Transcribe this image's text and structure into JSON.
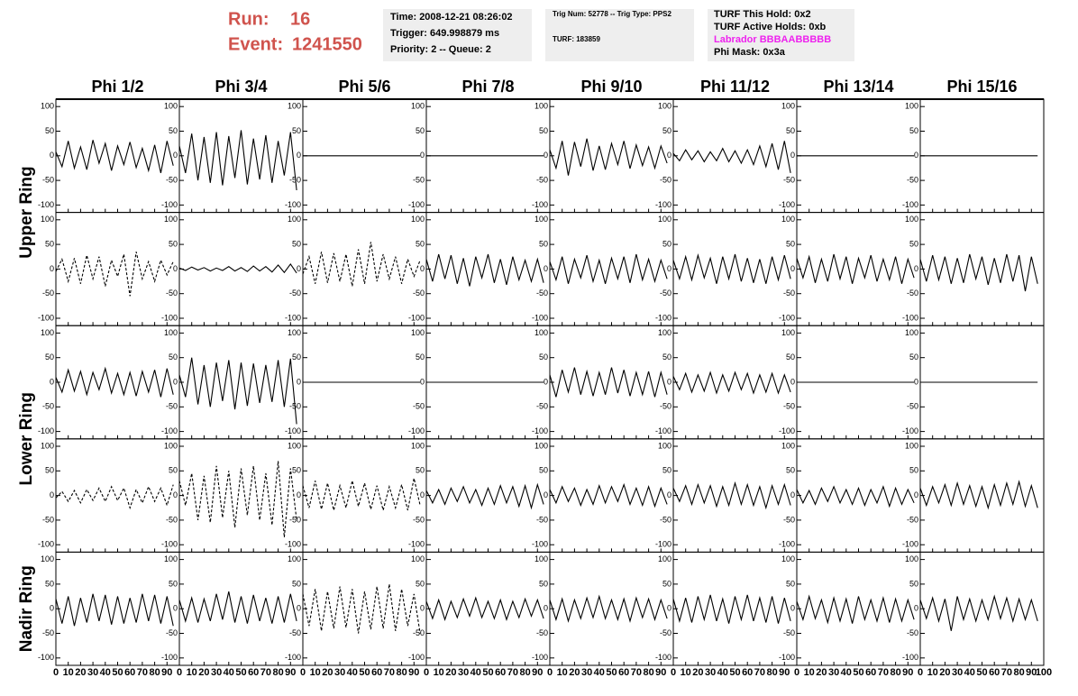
{
  "header": {
    "run": {
      "label": "Run:",
      "value": 16
    },
    "event": {
      "label": "Event:",
      "value": 1241550
    },
    "info_boxes": [
      [
        "Time: 2008-12-21 08:26:02",
        "Trigger: 649.998879 ms",
        "Priority: 2 -- Queue: 2"
      ],
      [
        "Trig Num: 52778 -- Trig Type: PPS2",
        "TURF: 183859"
      ],
      [
        "TURF This Hold: 0x2",
        "TURF Active Holds: 0xb",
        "Labrador BBBAABBBBB",
        "Phi Mask: 0x3a"
      ]
    ]
  },
  "chart_data": {
    "type": "line",
    "columns": [
      "Phi 1/2",
      "Phi 3/4",
      "Phi 5/6",
      "Phi 7/8",
      "Phi 9/10",
      "Phi 11/12",
      "Phi 13/14",
      "Phi 15/16"
    ],
    "ring_labels": [
      "Upper Ring",
      "Lower Ring",
      "Nadir Ring"
    ],
    "x": [
      0,
      5,
      10,
      15,
      20,
      25,
      30,
      35,
      40,
      45,
      50,
      55,
      60,
      65,
      70,
      75,
      80,
      85,
      90,
      95
    ],
    "xlim": [
      0,
      100
    ],
    "xticks": [
      0,
      10,
      20,
      30,
      40,
      50,
      60,
      70,
      80,
      90,
      100
    ],
    "ylim": [
      -115,
      115
    ],
    "yticks": [
      -100,
      -50,
      0,
      50,
      100
    ],
    "color": "#000000",
    "rows": [
      {
        "panels": [
          {
            "dashed": false,
            "values": [
              8,
              -22,
              30,
              -25,
              18,
              -28,
              32,
              -15,
              25,
              -30,
              20,
              -18,
              28,
              -24,
              15,
              -30,
              22,
              -35,
              30,
              -20
            ]
          },
          {
            "dashed": false,
            "values": [
              20,
              -35,
              45,
              -50,
              38,
              -55,
              48,
              -60,
              40,
              -45,
              52,
              -58,
              35,
              -48,
              42,
              -55,
              30,
              -40,
              48,
              -70
            ]
          },
          {
            "dashed": false,
            "values": [
              0,
              0,
              0,
              0,
              0,
              0,
              0,
              0,
              0,
              0,
              0,
              0,
              0,
              0,
              0,
              0,
              0,
              0,
              0,
              0
            ]
          },
          {
            "dashed": false,
            "values": [
              0,
              0,
              0,
              0,
              0,
              0,
              0,
              0,
              0,
              0,
              0,
              0,
              0,
              0,
              0,
              0,
              0,
              0,
              0,
              0
            ]
          },
          {
            "dashed": false,
            "values": [
              12,
              -25,
              30,
              -40,
              28,
              -22,
              35,
              -30,
              20,
              -28,
              25,
              -18,
              30,
              -26,
              22,
              -20,
              18,
              -25,
              20,
              -15
            ]
          },
          {
            "dashed": false,
            "values": [
              5,
              -10,
              12,
              -8,
              10,
              -12,
              8,
              -10,
              15,
              -12,
              10,
              -15,
              12,
              -18,
              20,
              -22,
              25,
              -28,
              30,
              -35
            ]
          },
          {
            "dashed": false,
            "values": [
              0,
              0,
              0,
              0,
              0,
              0,
              0,
              0,
              0,
              0,
              0,
              0,
              0,
              0,
              0,
              0,
              0,
              0,
              0,
              0
            ]
          },
          {
            "dashed": false,
            "values": [
              0,
              0,
              0,
              0,
              0,
              0,
              0,
              0,
              0,
              0,
              0,
              0,
              0,
              0,
              0,
              0,
              0,
              0,
              0,
              0
            ]
          }
        ]
      },
      {
        "panels": [
          {
            "dashed": true,
            "values": [
              -5,
              20,
              -25,
              22,
              -30,
              28,
              -20,
              25,
              -35,
              18,
              -15,
              30,
              -55,
              35,
              -20,
              15,
              -25,
              18,
              -12,
              15
            ]
          },
          {
            "dashed": false,
            "values": [
              2,
              -3,
              4,
              -2,
              3,
              -4,
              2,
              -3,
              5,
              -4,
              3,
              -5,
              6,
              -4,
              5,
              -6,
              8,
              -7,
              10,
              -8
            ]
          },
          {
            "dashed": true,
            "values": [
              -10,
              25,
              -30,
              35,
              -28,
              32,
              -25,
              30,
              -35,
              40,
              -30,
              55,
              -25,
              30,
              -20,
              25,
              -30,
              20,
              -15,
              18
            ]
          },
          {
            "dashed": false,
            "values": [
              20,
              -25,
              30,
              -20,
              28,
              -30,
              22,
              -35,
              25,
              -18,
              30,
              -28,
              20,
              -32,
              25,
              -22,
              18,
              -25,
              20,
              -28
            ]
          },
          {
            "dashed": false,
            "values": [
              15,
              -22,
              25,
              -30,
              20,
              -18,
              28,
              -25,
              18,
              -30,
              22,
              -20,
              25,
              -28,
              30,
              -22,
              20,
              -25,
              18,
              -20
            ]
          },
          {
            "dashed": false,
            "values": [
              18,
              -20,
              25,
              -22,
              28,
              -18,
              22,
              -30,
              25,
              -20,
              30,
              -25,
              22,
              -28,
              20,
              -30,
              25,
              -22,
              28,
              -20
            ]
          },
          {
            "dashed": false,
            "values": [
              22,
              -18,
              25,
              -28,
              20,
              -25,
              30,
              -20,
              25,
              -30,
              22,
              -18,
              28,
              -25,
              20,
              -22,
              25,
              -30,
              20,
              -18
            ]
          },
          {
            "dashed": false,
            "values": [
              20,
              -25,
              28,
              -22,
              25,
              -30,
              22,
              -28,
              30,
              -20,
              25,
              -32,
              22,
              -28,
              30,
              -25,
              28,
              -45,
              25,
              -30
            ]
          }
        ]
      },
      {
        "panels": [
          {
            "dashed": false,
            "values": [
              10,
              -20,
              25,
              -18,
              22,
              -25,
              20,
              -15,
              28,
              -22,
              18,
              -25,
              20,
              -28,
              22,
              -20,
              25,
              -30,
              28,
              -25
            ]
          },
          {
            "dashed": false,
            "values": [
              15,
              -30,
              50,
              -45,
              35,
              -50,
              40,
              -38,
              45,
              -55,
              40,
              -48,
              38,
              -42,
              35,
              -40,
              45,
              -50,
              48,
              -85
            ]
          },
          {
            "dashed": false,
            "values": [
              0,
              0,
              0,
              0,
              0,
              0,
              0,
              0,
              0,
              0,
              0,
              0,
              0,
              0,
              0,
              0,
              0,
              0,
              0,
              0
            ]
          },
          {
            "dashed": false,
            "values": [
              0,
              0,
              0,
              0,
              0,
              0,
              0,
              0,
              0,
              0,
              0,
              0,
              0,
              0,
              0,
              0,
              0,
              0,
              0,
              0
            ]
          },
          {
            "dashed": false,
            "values": [
              15,
              -30,
              25,
              -20,
              30,
              -25,
              22,
              -28,
              20,
              -25,
              30,
              -22,
              25,
              -28,
              20,
              -25,
              22,
              -30,
              20,
              -25
            ]
          },
          {
            "dashed": false,
            "values": [
              12,
              -15,
              18,
              -20,
              15,
              -18,
              20,
              -22,
              15,
              -18,
              20,
              -15,
              18,
              -22,
              15,
              -20,
              18,
              -22,
              15,
              -20
            ]
          },
          {
            "dashed": false,
            "values": [
              0,
              0,
              0,
              0,
              0,
              0,
              0,
              0,
              0,
              0,
              0,
              0,
              0,
              0,
              0,
              0,
              0,
              0,
              0,
              0
            ]
          },
          {
            "dashed": false,
            "values": [
              0,
              0,
              0,
              0,
              0,
              0,
              0,
              0,
              0,
              0,
              0,
              0,
              0,
              0,
              0,
              0,
              0,
              0,
              0,
              0
            ]
          }
        ]
      },
      {
        "panels": [
          {
            "dashed": true,
            "values": [
              -5,
              8,
              -12,
              10,
              -15,
              12,
              -10,
              15,
              -12,
              18,
              -10,
              15,
              -25,
              12,
              -15,
              18,
              -12,
              15,
              -20,
              22
            ]
          },
          {
            "dashed": true,
            "values": [
              30,
              -20,
              45,
              -50,
              40,
              -55,
              60,
              -45,
              50,
              -65,
              55,
              -40,
              60,
              -50,
              45,
              -60,
              70,
              -85,
              55,
              -50
            ]
          },
          {
            "dashed": true,
            "values": [
              20,
              -25,
              30,
              -28,
              25,
              -30,
              20,
              -25,
              30,
              -22,
              25,
              -28,
              20,
              -30,
              18,
              -25,
              22,
              -30,
              35,
              -20
            ]
          },
          {
            "dashed": false,
            "values": [
              10,
              -15,
              12,
              -18,
              15,
              -12,
              18,
              -15,
              12,
              -20,
              15,
              -18,
              20,
              -15,
              18,
              -22,
              20,
              -25,
              22,
              -18
            ]
          },
          {
            "dashed": false,
            "values": [
              12,
              -15,
              18,
              -12,
              15,
              -20,
              12,
              -18,
              20,
              -15,
              18,
              -12,
              22,
              -18,
              15,
              -20,
              18,
              -22,
              15,
              -18
            ]
          },
          {
            "dashed": false,
            "values": [
              15,
              -12,
              20,
              -18,
              22,
              -15,
              20,
              -22,
              18,
              -20,
              25,
              -18,
              22,
              -20,
              18,
              -25,
              20,
              -18,
              22,
              -20
            ]
          },
          {
            "dashed": false,
            "values": [
              12,
              -15,
              10,
              -18,
              15,
              -12,
              18,
              -15,
              12,
              -18,
              15,
              -20,
              12,
              -15,
              18,
              -22,
              15,
              -18,
              12,
              -15
            ]
          },
          {
            "dashed": false,
            "values": [
              15,
              -20,
              18,
              -15,
              22,
              -20,
              25,
              -18,
              20,
              -22,
              18,
              -25,
              22,
              -20,
              25,
              -18,
              28,
              -22,
              20,
              -25
            ]
          }
        ]
      },
      {
        "panels": [
          {
            "dashed": false,
            "values": [
              20,
              -30,
              25,
              -35,
              22,
              -28,
              30,
              -25,
              28,
              -32,
              25,
              -30,
              22,
              -28,
              30,
              -25,
              28,
              -30,
              25,
              -35
            ]
          },
          {
            "dashed": false,
            "values": [
              18,
              -25,
              22,
              -28,
              20,
              -25,
              30,
              -22,
              35,
              -28,
              25,
              -30,
              28,
              -25,
              22,
              -30,
              25,
              -28,
              30,
              -25
            ]
          },
          {
            "dashed": true,
            "values": [
              30,
              -35,
              40,
              -45,
              35,
              -40,
              45,
              -38,
              40,
              -50,
              35,
              -42,
              45,
              -40,
              50,
              -45,
              40,
              -35,
              30,
              -50
            ]
          },
          {
            "dashed": false,
            "values": [
              15,
              -20,
              18,
              -22,
              15,
              -18,
              20,
              -15,
              22,
              -18,
              15,
              -20,
              18,
              -22,
              15,
              -18,
              20,
              -15,
              18,
              -20
            ]
          },
          {
            "dashed": false,
            "values": [
              18,
              -22,
              20,
              -25,
              18,
              -20,
              22,
              -18,
              25,
              -20,
              18,
              -22,
              20,
              -25,
              22,
              -18,
              20,
              -22,
              18,
              -20
            ]
          },
          {
            "dashed": false,
            "values": [
              20,
              -25,
              22,
              -28,
              25,
              -22,
              28,
              -25,
              20,
              -30,
              25,
              -22,
              28,
              -25,
              22,
              -28,
              25,
              -30,
              22,
              -25
            ]
          },
          {
            "dashed": false,
            "values": [
              15,
              -22,
              25,
              -20,
              18,
              -28,
              22,
              -25,
              20,
              -30,
              25,
              -22,
              18,
              -25,
              22,
              -28,
              20,
              -25,
              18,
              -22
            ]
          },
          {
            "dashed": false,
            "values": [
              18,
              -20,
              22,
              -25,
              20,
              -45,
              25,
              -22,
              20,
              -25,
              18,
              -22,
              25,
              -20,
              22,
              -25,
              20,
              -22,
              18,
              -25
            ]
          }
        ]
      }
    ]
  }
}
